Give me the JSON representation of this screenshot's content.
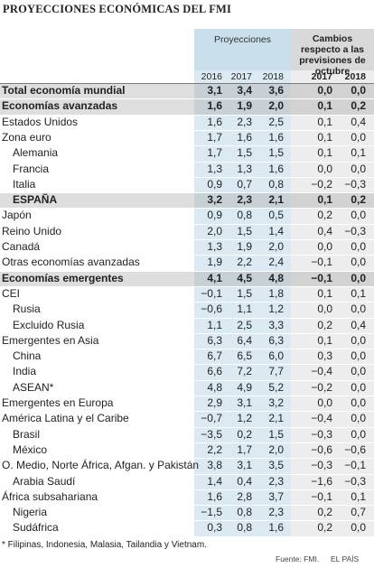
{
  "header": {
    "title": "PROYECCIONES ECONÓMICAS DEL FMI",
    "group1": "Proyecciones",
    "group2": "Cambios respecto a las previsiones de octubre",
    "columns": [
      "2016",
      "2017",
      "2018",
      "2017",
      "2018"
    ]
  },
  "table": {
    "rows": [
      {
        "label": "Total economía mundial",
        "bold": true,
        "level": 0,
        "values": [
          "3,1",
          "3,4",
          "3,6",
          "0,0",
          "0,0"
        ]
      },
      {
        "label": "Economías avanzadas",
        "bold": true,
        "level": 0,
        "values": [
          "1,6",
          "1,9",
          "2,0",
          "0,1",
          "0,2"
        ]
      },
      {
        "label": "Estados Unidos",
        "level": 0,
        "values": [
          "1,6",
          "2,3",
          "2,5",
          "0,1",
          "0,4"
        ]
      },
      {
        "label": "Zona euro",
        "level": 0,
        "values": [
          "1,7",
          "1,6",
          "1,6",
          "0,1",
          "0,0"
        ]
      },
      {
        "label": "Alemania",
        "level": 1,
        "values": [
          "1,7",
          "1,5",
          "1,5",
          "0,1",
          "0,1"
        ]
      },
      {
        "label": "Francia",
        "level": 1,
        "values": [
          "1,3",
          "1,3",
          "1,6",
          "0,0",
          "0,0"
        ]
      },
      {
        "label": "Italia",
        "level": 1,
        "values": [
          "0,9",
          "0,7",
          "0,8",
          "−0,2",
          "−0,3"
        ]
      },
      {
        "label": "ESPAÑA",
        "bold": true,
        "level": 1,
        "values": [
          "3,2",
          "2,3",
          "2,1",
          "0,1",
          "0,2"
        ]
      },
      {
        "label": "Japón",
        "level": 0,
        "values": [
          "0,9",
          "0,8",
          "0,5",
          "0,2",
          "0,0"
        ]
      },
      {
        "label": "Reino Unido",
        "level": 0,
        "values": [
          "2,0",
          "1,5",
          "1,4",
          "0,4",
          "−0,3"
        ]
      },
      {
        "label": "Canadá",
        "level": 0,
        "values": [
          "1,3",
          "1,9",
          "2,0",
          "0,0",
          "0,0"
        ]
      },
      {
        "label": "Otras economías avanzadas",
        "level": 0,
        "values": [
          "1,9",
          "2,2",
          "2,4",
          "−0,1",
          "0,0"
        ]
      },
      {
        "label": "Economías emergentes",
        "bold": true,
        "level": 0,
        "values": [
          "4,1",
          "4,5",
          "4,8",
          "−0,1",
          "0,0"
        ]
      },
      {
        "label": "CEI",
        "level": 0,
        "values": [
          "−0,1",
          "1,5",
          "1,8",
          "0,1",
          "0,1"
        ]
      },
      {
        "label": "Rusia",
        "level": 1,
        "values": [
          "−0,6",
          "1,1",
          "1,2",
          "0,0",
          "0,0"
        ]
      },
      {
        "label": "Excluido Rusia",
        "level": 1,
        "values": [
          "1,1",
          "2,5",
          "3,3",
          "0,2",
          "0,4"
        ]
      },
      {
        "label": "Emergentes en Asia",
        "level": 0,
        "values": [
          "6,3",
          "6,4",
          "6,3",
          "0,1",
          "0,0"
        ]
      },
      {
        "label": "China",
        "level": 1,
        "values": [
          "6,7",
          "6,5",
          "6,0",
          "0,3",
          "0,0"
        ]
      },
      {
        "label": "India",
        "level": 1,
        "values": [
          "6,6",
          "7,2",
          "7,7",
          "−0,4",
          "0,0"
        ]
      },
      {
        "label": "ASEAN*",
        "level": 1,
        "values": [
          "4,8",
          "4,9",
          "5,2",
          "−0,2",
          "0,0"
        ]
      },
      {
        "label": "Emergentes en Europa",
        "level": 0,
        "values": [
          "2,9",
          "3,1",
          "3,2",
          "0,0",
          "0,0"
        ]
      },
      {
        "label": "América Latina y el Caribe",
        "level": 0,
        "values": [
          "−0,7",
          "1,2",
          "2,1",
          "−0,4",
          "0,0"
        ]
      },
      {
        "label": "Brasil",
        "level": 1,
        "values": [
          "−3,5",
          "0,2",
          "1,5",
          "−0,3",
          "0,0"
        ]
      },
      {
        "label": "México",
        "level": 1,
        "values": [
          "2,2",
          "1,7",
          "2,0",
          "−0,6",
          "−0,6"
        ]
      },
      {
        "label": "O. Medio, Norte África, Afgan. y Pakistán",
        "level": 0,
        "values": [
          "3,8",
          "3,1",
          "3,5",
          "−0,3",
          "−0,1"
        ]
      },
      {
        "label": "Arabia Saudí",
        "level": 1,
        "values": [
          "1,4",
          "0,4",
          "2,3",
          "−1,6",
          "−0,3"
        ]
      },
      {
        "label": "África subsahariana",
        "level": 0,
        "values": [
          "1,6",
          "2,8",
          "3,7",
          "−0,1",
          "0,1"
        ]
      },
      {
        "label": "Nigeria",
        "level": 1,
        "values": [
          "−1,5",
          "0,8",
          "2,3",
          "0,2",
          "0,7"
        ]
      },
      {
        "label": "Sudáfrica",
        "level": 1,
        "values": [
          "0,3",
          "0,8",
          "1,6",
          "0,2",
          "0,0"
        ]
      }
    ]
  },
  "footer": {
    "note": "* Filipinas, Indonesia, Malasia, Tailandia y Vietnam.",
    "source": "Fuente: FMI.",
    "brand": "EL PAÍS"
  }
}
